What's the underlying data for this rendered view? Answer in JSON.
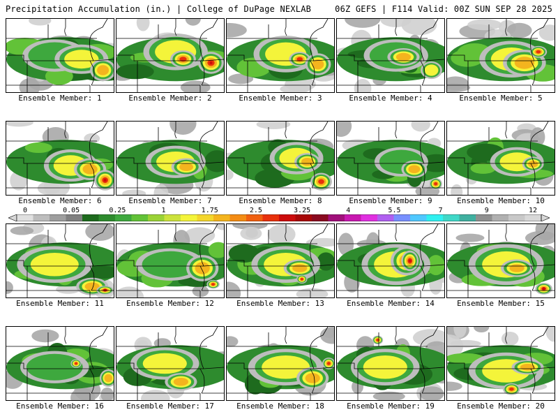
{
  "header": {
    "title_left": "Precipitation Accumulation (in.) | College of DuPage NEXLAB",
    "title_right": "06Z GEFS | F114 Valid: 00Z SUN SEP 28 2025"
  },
  "panels": [
    {
      "label": "Ensemble Member: 1",
      "blobs": [
        [
          0.45,
          0.5,
          0.3,
          0.22,
          1
        ],
        [
          0.7,
          0.55,
          0.25,
          0.2,
          2
        ],
        [
          0.9,
          0.7,
          0.12,
          0.15,
          3
        ]
      ]
    },
    {
      "label": "Ensemble Member: 2",
      "blobs": [
        [
          0.55,
          0.45,
          0.3,
          0.25,
          2
        ],
        [
          0.62,
          0.55,
          0.12,
          0.12,
          4
        ],
        [
          0.88,
          0.6,
          0.12,
          0.15,
          5
        ]
      ]
    },
    {
      "label": "Ensemble Member: 3",
      "blobs": [
        [
          0.55,
          0.48,
          0.3,
          0.25,
          2
        ],
        [
          0.68,
          0.55,
          0.1,
          0.1,
          4
        ],
        [
          0.85,
          0.62,
          0.12,
          0.15,
          3
        ]
      ]
    },
    {
      "label": "Ensemble Member: 4",
      "blobs": [
        [
          0.55,
          0.5,
          0.3,
          0.22,
          1
        ],
        [
          0.62,
          0.52,
          0.15,
          0.12,
          3
        ],
        [
          0.88,
          0.7,
          0.1,
          0.12,
          2
        ]
      ]
    },
    {
      "label": "Ensemble Member: 5",
      "blobs": [
        [
          0.6,
          0.55,
          0.3,
          0.25,
          2
        ],
        [
          0.72,
          0.6,
          0.2,
          0.18,
          3
        ],
        [
          0.85,
          0.45,
          0.08,
          0.08,
          4
        ]
      ]
    },
    {
      "label": "Ensemble Member: 6",
      "blobs": [
        [
          0.6,
          0.6,
          0.25,
          0.22,
          2
        ],
        [
          0.78,
          0.65,
          0.15,
          0.15,
          3
        ],
        [
          0.92,
          0.8,
          0.1,
          0.14,
          5
        ]
      ]
    },
    {
      "label": "Ensemble Member: 7",
      "blobs": [
        [
          0.55,
          0.55,
          0.28,
          0.22,
          2
        ],
        [
          0.65,
          0.62,
          0.14,
          0.12,
          3
        ]
      ]
    },
    {
      "label": "Ensemble Member: 8",
      "blobs": [
        [
          0.65,
          0.5,
          0.25,
          0.22,
          2
        ],
        [
          0.75,
          0.55,
          0.12,
          0.12,
          3
        ],
        [
          0.88,
          0.82,
          0.1,
          0.12,
          4
        ]
      ]
    },
    {
      "label": "Ensemble Member: 9",
      "blobs": [
        [
          0.6,
          0.55,
          0.25,
          0.2,
          1
        ],
        [
          0.72,
          0.65,
          0.12,
          0.12,
          3
        ],
        [
          0.92,
          0.85,
          0.06,
          0.08,
          4
        ]
      ]
    },
    {
      "label": "Ensemble Member: 10",
      "blobs": [
        [
          0.65,
          0.55,
          0.25,
          0.2,
          2
        ],
        [
          0.8,
          0.58,
          0.1,
          0.1,
          3
        ]
      ]
    },
    {
      "label": "Ensemble Member: 11",
      "blobs": [
        [
          0.45,
          0.55,
          0.35,
          0.25,
          2
        ],
        [
          0.8,
          0.85,
          0.15,
          0.12,
          3
        ],
        [
          0.92,
          0.9,
          0.08,
          0.06,
          5
        ]
      ]
    },
    {
      "label": "Ensemble Member: 12",
      "blobs": [
        [
          0.5,
          0.55,
          0.32,
          0.22,
          1
        ],
        [
          0.8,
          0.6,
          0.15,
          0.18,
          3
        ],
        [
          0.9,
          0.82,
          0.06,
          0.06,
          4
        ]
      ]
    },
    {
      "label": "Ensemble Member: 13",
      "blobs": [
        [
          0.55,
          0.55,
          0.32,
          0.25,
          2
        ],
        [
          0.68,
          0.6,
          0.15,
          0.12,
          3
        ],
        [
          0.7,
          0.75,
          0.05,
          0.06,
          4
        ]
      ]
    },
    {
      "label": "Ensemble Member: 14",
      "blobs": [
        [
          0.55,
          0.55,
          0.32,
          0.28,
          2
        ],
        [
          0.65,
          0.5,
          0.15,
          0.2,
          3
        ],
        [
          0.68,
          0.5,
          0.08,
          0.14,
          5
        ]
      ]
    },
    {
      "label": "Ensemble Member: 15",
      "blobs": [
        [
          0.55,
          0.55,
          0.35,
          0.28,
          2
        ],
        [
          0.65,
          0.6,
          0.15,
          0.12,
          3
        ],
        [
          0.9,
          0.88,
          0.08,
          0.08,
          5
        ]
      ]
    },
    {
      "label": "Ensemble Member: 16",
      "blobs": [
        [
          0.45,
          0.55,
          0.32,
          0.22,
          1
        ],
        [
          0.65,
          0.5,
          0.05,
          0.06,
          4
        ],
        [
          0.95,
          0.7,
          0.08,
          0.12,
          3
        ]
      ]
    },
    {
      "label": "Ensemble Member: 17",
      "blobs": [
        [
          0.45,
          0.5,
          0.32,
          0.22,
          2
        ],
        [
          0.6,
          0.75,
          0.15,
          0.12,
          3
        ]
      ]
    },
    {
      "label": "Ensemble Member: 18",
      "blobs": [
        [
          0.55,
          0.55,
          0.35,
          0.25,
          2
        ],
        [
          0.8,
          0.7,
          0.15,
          0.15,
          3
        ],
        [
          0.95,
          0.5,
          0.06,
          0.08,
          4
        ]
      ]
    },
    {
      "label": "Ensemble Member: 19",
      "blobs": [
        [
          0.45,
          0.55,
          0.32,
          0.25,
          2
        ],
        [
          0.38,
          0.18,
          0.05,
          0.06,
          4
        ]
      ]
    },
    {
      "label": "Ensemble Member: 20",
      "blobs": [
        [
          0.55,
          0.6,
          0.35,
          0.25,
          2
        ],
        [
          0.75,
          0.55,
          0.15,
          0.1,
          3
        ],
        [
          0.6,
          0.85,
          0.08,
          0.08,
          4
        ]
      ]
    }
  ],
  "colorbar": {
    "tick_labels": [
      "0",
      "0.05",
      "0.25",
      "1",
      "1.75",
      "2.5",
      "3.25",
      "4",
      "5.5",
      "7",
      "9",
      "12"
    ],
    "colors": [
      "#e0e0e0",
      "#bdbdbd",
      "#9e9e9e",
      "#808080",
      "#1e6b1e",
      "#2e8b2e",
      "#3ea83e",
      "#62c238",
      "#9ad236",
      "#cce23c",
      "#f4f43a",
      "#f4d62c",
      "#f4b41e",
      "#f48c14",
      "#f06010",
      "#e8300c",
      "#cc0c0c",
      "#a80808",
      "#8a0a20",
      "#a0107a",
      "#c818b0",
      "#e030e0",
      "#b060f0",
      "#7890ff",
      "#50c8ff",
      "#30f0f0",
      "#40d8c8",
      "#40b0a0",
      "#909090",
      "#b0b0b0",
      "#c8c8c8",
      "#d8d8d8"
    ]
  },
  "level_colors": [
    "#bdbdbd",
    "#3ea83e",
    "#f4f43a",
    "#f4b41e",
    "#e8300c",
    "#cc0c0c"
  ]
}
